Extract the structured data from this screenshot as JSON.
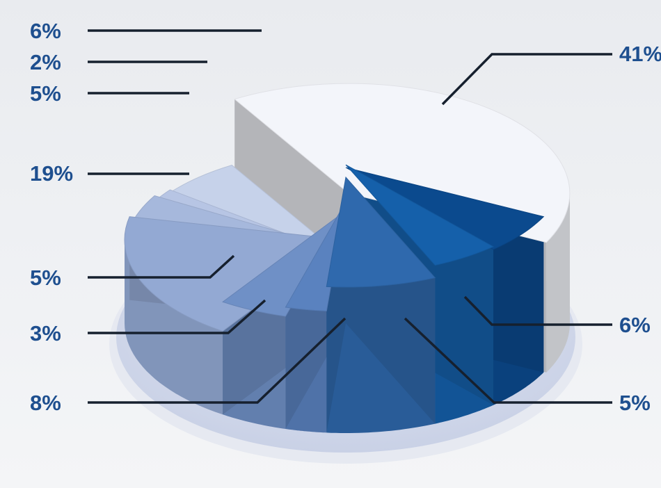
{
  "chart_data": {
    "type": "pie",
    "style": "3d-exploded",
    "title": "",
    "slices": [
      {
        "label": "41%",
        "value": 41,
        "color": "#f3f5fa"
      },
      {
        "label": "6%",
        "value": 6,
        "color": "#0b4a8e"
      },
      {
        "label": "5%",
        "value": 5,
        "color": "#1560aa"
      },
      {
        "label": "8%",
        "value": 8,
        "color": "#2f69ad"
      },
      {
        "label": "3%",
        "value": 3,
        "color": "#5a82bf"
      },
      {
        "label": "5%",
        "value": 5,
        "color": "#6f90c6"
      },
      {
        "label": "19%",
        "value": 19,
        "color": "#93a9d3"
      },
      {
        "label": "5%",
        "value": 5,
        "color": "#a6b8dc"
      },
      {
        "label": "2%",
        "value": 2,
        "color": "#b7c5e4"
      },
      {
        "label": "6%",
        "value": 6,
        "color": "#c6d2ea"
      }
    ],
    "label_color": "#1e4f8f",
    "leader_color": "#16202e",
    "base_color": "#d3d9ea"
  }
}
